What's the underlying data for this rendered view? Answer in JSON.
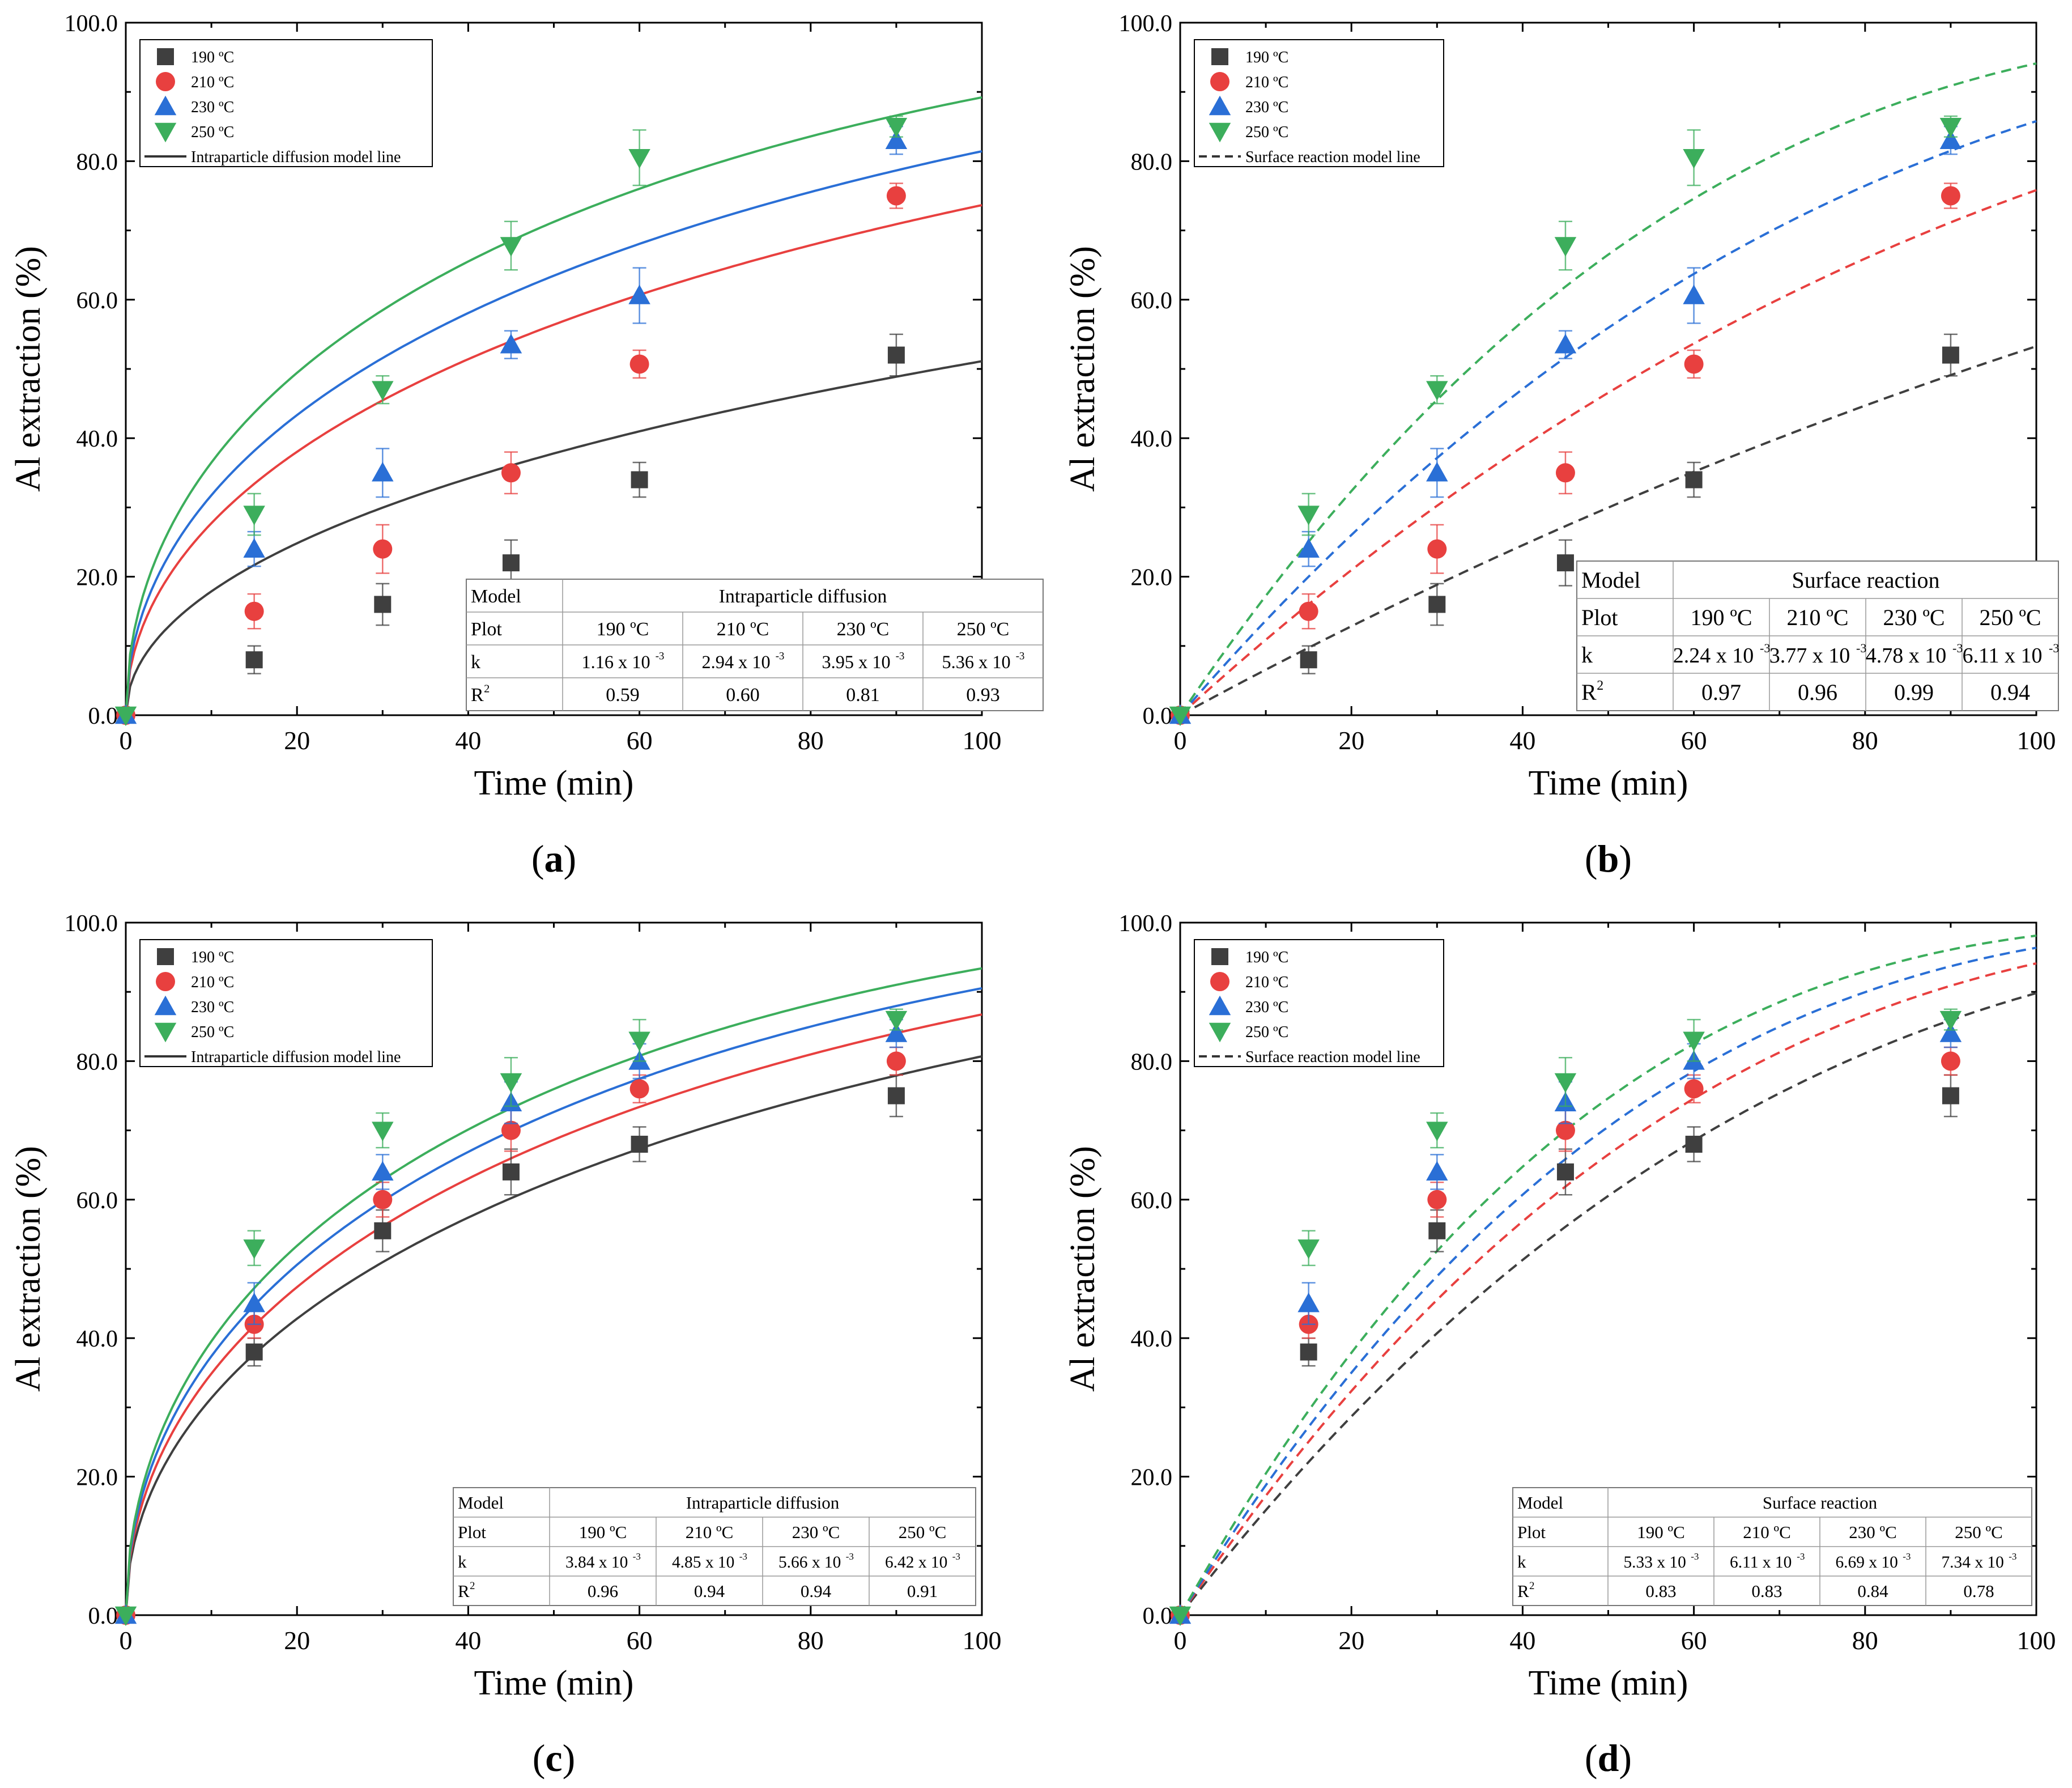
{
  "colors": {
    "c190": "#3f3f3f",
    "c210": "#e8403f",
    "c230": "#2a6fd6",
    "c250": "#3cae5c",
    "axis": "#000000"
  },
  "chart_data": [
    {
      "id": "a",
      "panel_label": "a",
      "type": "scatter",
      "title": "",
      "xlabel": "Time (min)",
      "ylabel": "Al extraction (%)",
      "xlim": [
        0,
        100
      ],
      "ylim": [
        0,
        100
      ],
      "xticks": [
        "0",
        "20",
        "40",
        "60",
        "80",
        "100"
      ],
      "yticks": [
        "0.0",
        "20.0",
        "40.0",
        "60.0",
        "80.0",
        "100.0"
      ],
      "x": [
        0,
        15,
        30,
        45,
        60,
        90
      ],
      "model": "diffusion",
      "line_style": "solid",
      "series": [
        {
          "name": "190 ºC",
          "marker": "square",
          "color_key": "c190",
          "values": [
            0,
            8,
            16,
            22,
            34,
            52
          ],
          "errors": [
            0,
            2,
            3,
            3.3,
            2.5,
            3
          ],
          "k": 0.00116
        },
        {
          "name": "210 ºC",
          "marker": "circle",
          "color_key": "c210",
          "values": [
            0,
            15,
            24,
            35,
            50.7,
            75
          ],
          "errors": [
            0,
            2.5,
            3.5,
            3,
            2,
            1.8
          ],
          "k": 0.00294
        },
        {
          "name": "230 ºC",
          "marker": "triangle-up",
          "color_key": "c230",
          "values": [
            0,
            24,
            35,
            53.5,
            60.6,
            83
          ],
          "errors": [
            0,
            2.5,
            3.5,
            2,
            4,
            2
          ],
          "k": 0.00395
        },
        {
          "name": "250 ºC",
          "marker": "triangle-down",
          "color_key": "c250",
          "values": [
            0,
            29,
            47,
            67.8,
            80.5,
            85
          ],
          "errors": [
            0,
            3,
            2,
            3.5,
            4,
            1.5
          ],
          "k": 0.00536
        }
      ],
      "legend": {
        "items": [
          "190 ºC",
          "210 ºC",
          "230 ºC",
          "250 ºC"
        ],
        "line_label": "Intraparticle diffusion model line",
        "position": "top-left"
      },
      "table": {
        "position": "bottom-right",
        "model_label": "Model",
        "model_name": "Intraparticle diffusion",
        "plot_label": "Plot",
        "k_label": "k",
        "r2_label": "R",
        "temps": [
          "190 ºC",
          "210 ºC",
          "230 ºC",
          "250 ºC"
        ],
        "k_values": [
          "1.16 x 10",
          "2.94 x 10",
          "3.95 x 10",
          "5.36 x 10"
        ],
        "k_exp": "-3",
        "r2": [
          "0.59",
          "0.60",
          "0.81",
          "0.93"
        ]
      }
    },
    {
      "id": "b",
      "panel_label": "b",
      "type": "scatter",
      "title": "",
      "xlabel": "Time (min)",
      "ylabel": "Al extraction (%)",
      "xlim": [
        0,
        100
      ],
      "ylim": [
        0,
        100
      ],
      "xticks": [
        "0",
        "20",
        "40",
        "60",
        "80",
        "100"
      ],
      "yticks": [
        "0.0",
        "20.0",
        "40.0",
        "60.0",
        "80.0",
        "100.0"
      ],
      "x": [
        0,
        15,
        30,
        45,
        60,
        90
      ],
      "model": "surface",
      "line_style": "dashed",
      "series": [
        {
          "name": "190 ºC",
          "marker": "square",
          "color_key": "c190",
          "values": [
            0,
            8,
            16,
            22,
            34,
            52
          ],
          "errors": [
            0,
            2,
            3,
            3.3,
            2.5,
            3
          ],
          "k": 0.00224
        },
        {
          "name": "210 ºC",
          "marker": "circle",
          "color_key": "c210",
          "values": [
            0,
            15,
            24,
            35,
            50.7,
            75
          ],
          "errors": [
            0,
            2.5,
            3.5,
            3,
            2,
            1.8
          ],
          "k": 0.00377
        },
        {
          "name": "230 ºC",
          "marker": "triangle-up",
          "color_key": "c230",
          "values": [
            0,
            24,
            35,
            53.5,
            60.6,
            83
          ],
          "errors": [
            0,
            2.5,
            3.5,
            2,
            4,
            2
          ],
          "k": 0.00478
        },
        {
          "name": "250 ºC",
          "marker": "triangle-down",
          "color_key": "c250",
          "values": [
            0,
            29,
            47,
            67.8,
            80.5,
            85
          ],
          "errors": [
            0,
            3,
            2,
            3.5,
            4,
            1.5
          ],
          "k": 0.00611
        }
      ],
      "legend": {
        "items": [
          "190 ºC",
          "210 ºC",
          "230 ºC",
          "250 ºC"
        ],
        "line_label": "Surface reaction model line",
        "position": "top-left"
      },
      "table": {
        "position": "bottom-right",
        "model_label": "Model",
        "model_name": "Surface reaction",
        "plot_label": "Plot",
        "k_label": "k",
        "r2_label": "R",
        "temps": [
          "190 ºC",
          "210 ºC",
          "230 ºC",
          "250 ºC"
        ],
        "k_values": [
          "2.24 x 10",
          "3.77 x 10",
          "4.78 x 10",
          "6.11 x 10"
        ],
        "k_exp": "-3",
        "r2": [
          "0.97",
          "0.96",
          "0.99",
          "0.94"
        ]
      }
    },
    {
      "id": "c",
      "panel_label": "c",
      "type": "scatter",
      "title": "",
      "xlabel": "Time (min)",
      "ylabel": "Al extraction (%)",
      "xlim": [
        0,
        100
      ],
      "ylim": [
        0,
        100
      ],
      "xticks": [
        "0",
        "20",
        "40",
        "60",
        "80",
        "100"
      ],
      "yticks": [
        "0.0",
        "20.0",
        "40.0",
        "60.0",
        "80.0",
        "100.0"
      ],
      "x": [
        0,
        15,
        30,
        45,
        60,
        90
      ],
      "model": "diffusion",
      "line_style": "solid",
      "series": [
        {
          "name": "190 ºC",
          "marker": "square",
          "color_key": "c190",
          "values": [
            0,
            38,
            55.5,
            64,
            68,
            75
          ],
          "errors": [
            0,
            2,
            3,
            3.3,
            2.5,
            3
          ],
          "k": 0.00384
        },
        {
          "name": "210 ºC",
          "marker": "circle",
          "color_key": "c210",
          "values": [
            0,
            42,
            60,
            70,
            76,
            80
          ],
          "errors": [
            0,
            2,
            2.5,
            3,
            2,
            2
          ]
        },
        {
          "name": "230 ºC",
          "marker": "triangle-up",
          "color_key": "c230",
          "values": [
            0,
            45,
            64,
            74,
            80,
            84
          ],
          "errors": [
            0,
            3,
            2.5,
            3,
            2.5,
            2
          ],
          "k": 0.00566
        },
        {
          "name": "250 ºC",
          "marker": "triangle-down",
          "color_key": "c250",
          "values": [
            0,
            53,
            70,
            77,
            83,
            86
          ],
          "errors": [
            0,
            2.5,
            2.5,
            3.5,
            3,
            1.5
          ],
          "k": 0.00642
        }
      ],
      "legend": {
        "items": [
          "190 ºC",
          "210 ºC",
          "230 ºC",
          "250 ºC"
        ],
        "line_label": "Intraparticle diffusion model line",
        "position": "top-left"
      },
      "table": {
        "position": "bottom-right",
        "model_label": "Model",
        "model_name": "Intraparticle diffusion",
        "plot_label": "Plot",
        "k_label": "k",
        "r2_label": "R",
        "temps": [
          "190 ºC",
          "210 ºC",
          "230 ºC",
          "250 ºC"
        ],
        "k_values": [
          "3.84 x 10",
          "4.85 x 10",
          "5.66 x 10",
          "6.42 x 10"
        ],
        "k_exp": "-3",
        "r2": [
          "0.96",
          "0.94",
          "0.94",
          "0.91"
        ]
      }
    },
    {
      "id": "d",
      "panel_label": "d",
      "type": "scatter",
      "title": "",
      "xlabel": "Time (min)",
      "ylabel": "Al extraction (%)",
      "xlim": [
        0,
        100
      ],
      "ylim": [
        0,
        100
      ],
      "xticks": [
        "0",
        "20",
        "40",
        "60",
        "80",
        "100"
      ],
      "yticks": [
        "0.0",
        "20.0",
        "40.0",
        "60.0",
        "80.0",
        "100.0"
      ],
      "x": [
        0,
        15,
        30,
        45,
        60,
        90
      ],
      "model": "surface",
      "line_style": "dashed",
      "series": [
        {
          "name": "190 ºC",
          "marker": "square",
          "color_key": "c190",
          "values": [
            0,
            38,
            55.5,
            64,
            68,
            75
          ],
          "errors": [
            0,
            2,
            3,
            3.3,
            2.5,
            3
          ],
          "k": 0.00533
        },
        {
          "name": "210 ºC",
          "marker": "circle",
          "color_key": "c210",
          "values": [
            0,
            42,
            60,
            70,
            76,
            80
          ],
          "errors": [
            0,
            2,
            2.5,
            3,
            2,
            2
          ],
          "k": 0.00611
        },
        {
          "name": "230 ºC",
          "marker": "triangle-up",
          "color_key": "c230",
          "values": [
            0,
            45,
            64,
            74,
            80,
            84
          ],
          "errors": [
            0,
            3,
            2.5,
            3,
            2.5,
            2
          ],
          "k": 0.00669
        },
        {
          "name": "250 ºC",
          "marker": "triangle-down",
          "color_key": "c250",
          "values": [
            0,
            53,
            70,
            77,
            83,
            86
          ],
          "errors": [
            0,
            2.5,
            2.5,
            3.5,
            3,
            1.5
          ],
          "k": 0.00734
        }
      ],
      "legend": {
        "items": [
          "190 ºC",
          "210 ºC",
          "230 ºC",
          "250 ºC"
        ],
        "line_label": "Surface reaction model line",
        "position": "top-left"
      },
      "table": {
        "position": "bottom-right",
        "model_label": "Model",
        "model_name": "Surface reaction",
        "plot_label": "Plot",
        "k_label": "k",
        "r2_label": "R",
        "temps": [
          "190 ºC",
          "210 ºC",
          "230 ºC",
          "250 ºC"
        ],
        "k_values": [
          "5.33 x 10",
          "6.11 x 10",
          "6.69 x 10",
          "7.34 x 10"
        ],
        "k_exp": "-3",
        "r2": [
          "0.83",
          "0.83",
          "0.84",
          "0.78"
        ]
      }
    }
  ]
}
